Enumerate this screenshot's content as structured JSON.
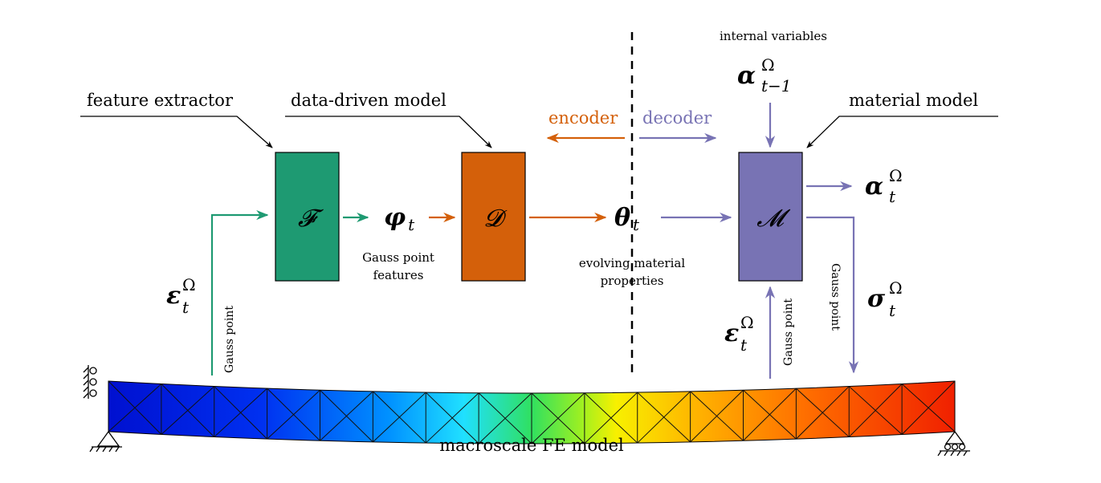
{
  "colors": {
    "feature": "#1e9a72",
    "datadriven": "#d4600a",
    "material": "#7873b4",
    "encoder": "#d4600a",
    "decoder": "#7873b4",
    "black": "#000000"
  },
  "labels": {
    "feature_extractor": "feature extractor",
    "data_driven_model": "data-driven model",
    "material_model": "material model",
    "internal_variables": "internal variables",
    "encoder": "encoder",
    "decoder": "decoder",
    "gauss_point_features_1": "Gauss point",
    "gauss_point_features_2": "features",
    "evolving_1": "evolving material",
    "evolving_2": "properties",
    "gauss_point": "Gauss point",
    "macroscale": "macroscale FE model"
  },
  "boxes": {
    "feature_symbol": "𝓕",
    "datadriven_symbol": "𝓓",
    "material_symbol": "𝓜"
  },
  "symbols": {
    "phi": "φ",
    "phi_sub": "t",
    "theta": "θ",
    "theta_sub": "t",
    "eps": "ε",
    "eps_sup": "Ω",
    "eps_sub": "t",
    "alpha_prev": "α",
    "alpha_prev_sup": "Ω",
    "alpha_prev_sub": "t−1",
    "alpha": "α",
    "alpha_sup": "Ω",
    "alpha_sub": "t",
    "sigma": "σ",
    "sigma_sup": "Ω",
    "sigma_sub": "t"
  },
  "mesh": {
    "elements": 16
  }
}
